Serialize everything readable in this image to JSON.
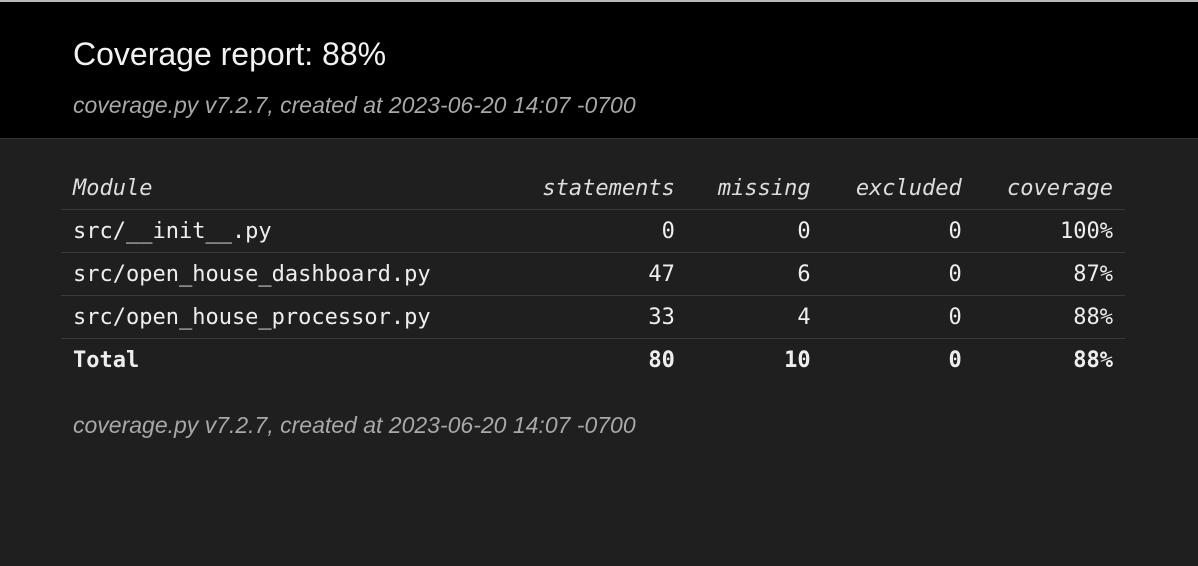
{
  "header": {
    "title": "Coverage report: 88%",
    "subtitle": "coverage.py v7.2.7, created at 2023-06-20 14:07 -0700"
  },
  "table": {
    "columns": [
      "Module",
      "statements",
      "missing",
      "excluded",
      "coverage"
    ],
    "rows": [
      {
        "name": "src/__init__.py",
        "statements": "0",
        "missing": "0",
        "excluded": "0",
        "coverage": "100%"
      },
      {
        "name": "src/open_house_dashboard.py",
        "statements": "47",
        "missing": "6",
        "excluded": "0",
        "coverage": "87%"
      },
      {
        "name": "src/open_house_processor.py",
        "statements": "33",
        "missing": "4",
        "excluded": "0",
        "coverage": "88%"
      }
    ],
    "total": {
      "name": "Total",
      "statements": "80",
      "missing": "10",
      "excluded": "0",
      "coverage": "88%"
    }
  },
  "footer": {
    "text": "coverage.py v7.2.7, created at 2023-06-20 14:07 -0700"
  }
}
